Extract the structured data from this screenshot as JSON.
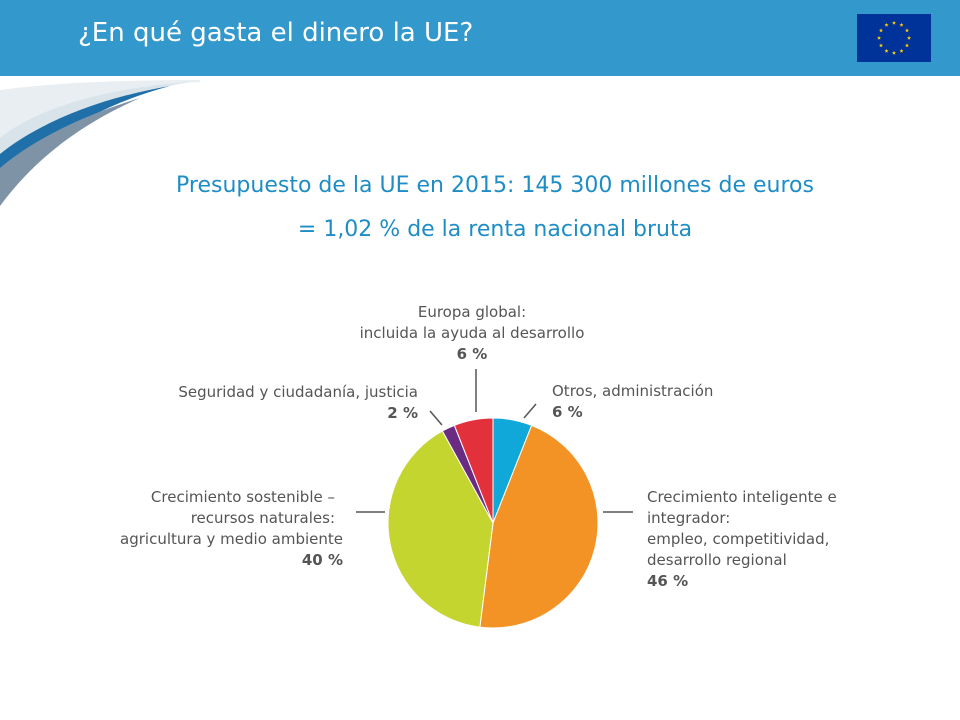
{
  "header": {
    "title": "¿En qué gasta el dinero la UE?",
    "background": "#3399cc"
  },
  "headline": {
    "line1": "Presupuesto de la UE en 2015: 145 300 millones de euros",
    "line2": "= 1,02 % de la renta nacional bruta"
  },
  "flag": {
    "icon": "eu-flag-icon",
    "background": "#003399",
    "star_color": "#ffcc00"
  },
  "chart_data": {
    "type": "pie",
    "slices": [
      {
        "lines": [
          "Crecimiento inteligente e",
          "integrador:",
          "empleo, competitividad,",
          "desarrollo regional"
        ],
        "value": 46,
        "value_label": "46 %",
        "color": "#f39325"
      },
      {
        "lines": [
          "Crecimiento sostenible –",
          "recursos naturales:",
          "agricultura y medio ambiente"
        ],
        "value": 40,
        "value_label": "40 %",
        "color": "#c3d52e"
      },
      {
        "lines": [
          "Seguridad y ciudadanía, justicia"
        ],
        "value": 2,
        "value_label": "2 %",
        "color": "#6a2c82"
      },
      {
        "lines": [
          "Europa global:",
          "incluida la ayuda al desarrollo"
        ],
        "value": 6,
        "value_label": "6 %",
        "color": "#e3313c"
      },
      {
        "lines": [
          "Otros, administración"
        ],
        "value": 6,
        "value_label": "6 %",
        "color": "#0fa8d9"
      }
    ]
  }
}
